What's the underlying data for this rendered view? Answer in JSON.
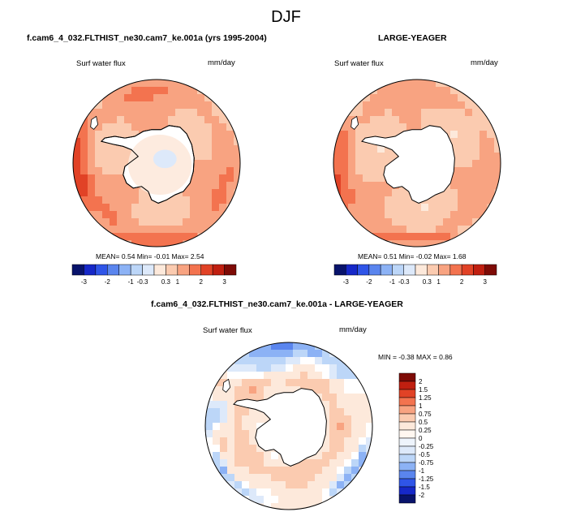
{
  "page": {
    "title": "DJF"
  },
  "colors": {
    "neg": [
      "#08136b",
      "#1628c8",
      "#2f55e8",
      "#5a85ee",
      "#8cb2f5",
      "#bcd6f8",
      "#dde9fa"
    ],
    "zero": "#ffffff",
    "pos": [
      "#fde9db",
      "#fbcbb0",
      "#f8a381",
      "#f3734f",
      "#e14226",
      "#c01f10",
      "#7e0b06"
    ],
    "land": "#ffffff",
    "coast": "#000000"
  },
  "chart_data": [
    {
      "type": "heatmap",
      "name": "model-map",
      "title": "f.cam6_4_032.FLTHIST_ne30.cam7_ke.001a (yrs 1995-2004)",
      "left_label": "Surf water flux",
      "right_label": "mm/day",
      "stats_text": "MEAN=  0.54  Min=  -0.01  Max=  2.54",
      "stats": {
        "mean": 0.54,
        "min": -0.01,
        "max": 2.54
      },
      "colorbar": {
        "orientation": "horizontal",
        "levels": [
          -3,
          -2,
          -1,
          -0.3,
          0.3,
          1,
          2,
          3
        ],
        "tick_labels": [
          "-3",
          "-2",
          "-1",
          "-0.3",
          "0.3",
          "1",
          "2",
          "3"
        ]
      }
    },
    {
      "type": "heatmap",
      "name": "obs-map",
      "title": "LARGE-YEAGER",
      "left_label": "Surf water flux",
      "right_label": "mm/day",
      "stats_text": "MEAN=  0.51  Min=  -0.02  Max=  1.68",
      "stats": {
        "mean": 0.51,
        "min": -0.02,
        "max": 1.68
      },
      "colorbar": {
        "orientation": "horizontal",
        "levels": [
          -3,
          -2,
          -1,
          -0.3,
          0.3,
          1,
          2,
          3
        ],
        "tick_labels": [
          "-3",
          "-2",
          "-1",
          "-0.3",
          "0.3",
          "1",
          "2",
          "3"
        ]
      }
    },
    {
      "type": "heatmap",
      "name": "diff-map",
      "title": "f.cam6_4_032.FLTHIST_ne30.cam7_ke.001a - LARGE-YEAGER",
      "left_label": "Surf water flux",
      "right_label": "mm/day",
      "stats_text": "MIN =  -0.38 MAX =   0.86",
      "stats": {
        "min": -0.38,
        "max": 0.86
      },
      "colorbar": {
        "orientation": "vertical",
        "levels": [
          2,
          1.5,
          1.25,
          1,
          0.75,
          0.5,
          0.25,
          0,
          -0.25,
          -0.5,
          -0.75,
          -1,
          -1.25,
          -1.5,
          -2
        ],
        "tick_labels": [
          "2",
          "1.5",
          "1.25",
          "1",
          "0.75",
          "0.5",
          "0.25",
          "0",
          "-0.25",
          "-0.5",
          "-0.75",
          "-1",
          "-1.25",
          "-1.5",
          "-2"
        ]
      }
    }
  ]
}
